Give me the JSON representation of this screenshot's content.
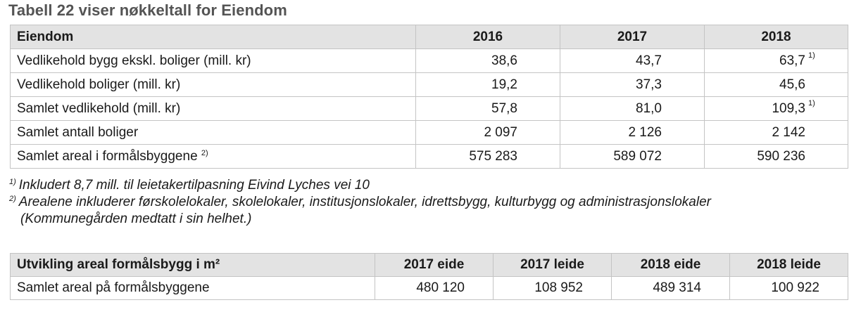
{
  "title": "Tabell 22 viser nøkkeltall for Eiendom",
  "table1": {
    "headers": [
      "Eiendom",
      "2016",
      "2017",
      "2018"
    ],
    "rows": [
      {
        "label": "Vedlikehold bygg ekskl. boliger (mill. kr)",
        "label_note": "",
        "values": [
          "38,6",
          "43,7",
          "63,7"
        ],
        "notes": [
          "",
          "",
          "1)"
        ]
      },
      {
        "label": "Vedlikehold boliger (mill. kr)",
        "label_note": "",
        "values": [
          "19,2",
          "37,3",
          "45,6"
        ],
        "notes": [
          "",
          "",
          ""
        ]
      },
      {
        "label": "Samlet vedlikehold (mill. kr)",
        "label_note": "",
        "values": [
          "57,8",
          "81,0",
          "109,3"
        ],
        "notes": [
          "",
          "",
          "1)"
        ]
      },
      {
        "label": "Samlet antall boliger",
        "label_note": "",
        "values": [
          "2 097",
          "2 126",
          "2 142"
        ],
        "notes": [
          "",
          "",
          ""
        ]
      },
      {
        "label": "Samlet areal i formålsbyggene",
        "label_note": "2)",
        "values": [
          "575 283",
          "589 072",
          "590 236"
        ],
        "notes": [
          "",
          "",
          ""
        ]
      }
    ]
  },
  "footnotes": {
    "note1_marker": "1)",
    "note1_text": "Inkludert 8,7 mill. til leietakertilpasning Eivind Lyches vei 10",
    "note2_marker": "2)",
    "note2_text": "Arealene inkluderer førskolelokaler, skolelokaler, institusjonslokaler, idrettsbygg, kulturbygg og administrasjonslokaler",
    "note2_cont": "(Kommunegården medtatt i sin helhet.)"
  },
  "table2": {
    "headers": [
      "Utvikling areal formålsbygg i m²",
      "2017 eide",
      "2017 leide",
      "2018 eide",
      "2018 leide"
    ],
    "rows": [
      {
        "label": "Samlet areal på formålsbyggene",
        "values": [
          "480 120",
          "108 952",
          "489 314",
          "100 922"
        ]
      }
    ]
  }
}
